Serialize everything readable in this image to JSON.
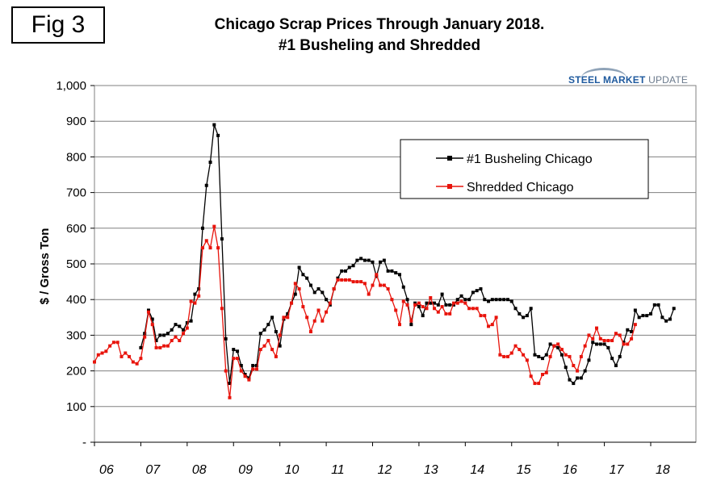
{
  "figure_label": "Fig 3",
  "title_line1": "Chicago Scrap Prices Through January 2018.",
  "title_line2": "#1 Busheling and Shredded",
  "logo": {
    "part1": "STEEL MARKET",
    "part2": "UPDATE",
    "arc_color": "#8fa3b8"
  },
  "chart_data": {
    "type": "line",
    "title": "Chicago Scrap Prices Through January 2018. #1 Busheling and Shredded",
    "xlabel": "",
    "ylabel": "$ / Gross Ton",
    "ylim": [
      0,
      1000
    ],
    "y_ticks": [
      0,
      100,
      200,
      300,
      400,
      500,
      600,
      700,
      800,
      900,
      1000
    ],
    "y_tick_labels": [
      "-",
      "100",
      "200",
      "300",
      "400",
      "500",
      "600",
      "700",
      "800",
      "900",
      "1,000"
    ],
    "x_tick_labels": [
      "06",
      "07",
      "08",
      "09",
      "10",
      "11",
      "12",
      "13",
      "14",
      "15",
      "16",
      "17",
      "18"
    ],
    "x_start": "Jan 2006",
    "x_end": "Jan 2018",
    "grid": true,
    "legend_position": "top-right",
    "series": [
      {
        "name": "#1 Busheling Chicago",
        "color": "#000000",
        "start_month_index": 12,
        "values": [
          265,
          305,
          370,
          345,
          285,
          300,
          300,
          305,
          315,
          330,
          325,
          315,
          335,
          340,
          415,
          430,
          600,
          720,
          785,
          890,
          860,
          570,
          290,
          165,
          260,
          255,
          215,
          190,
          180,
          215,
          215,
          305,
          315,
          330,
          350,
          310,
          270,
          345,
          360,
          390,
          415,
          490,
          470,
          460,
          440,
          420,
          430,
          420,
          400,
          385,
          430,
          460,
          480,
          480,
          490,
          495,
          510,
          515,
          510,
          510,
          505,
          465,
          505,
          510,
          480,
          480,
          475,
          470,
          435,
          400,
          330,
          390,
          380,
          355,
          390,
          390,
          390,
          385,
          415,
          385,
          385,
          385,
          400,
          410,
          400,
          400,
          420,
          425,
          430,
          400,
          395,
          400,
          400,
          400,
          400,
          400,
          395,
          375,
          360,
          350,
          355,
          375,
          245,
          240,
          235,
          245,
          275,
          270,
          265,
          245,
          210,
          175,
          165,
          180,
          180,
          200,
          230,
          280,
          275,
          275,
          275,
          265,
          235,
          215,
          240,
          280,
          315,
          310,
          370,
          350,
          355,
          355,
          360,
          385,
          385,
          350,
          340,
          345,
          375
        ]
      },
      {
        "name": "Shredded Chicago",
        "color": "#e8140c",
        "start_month_index": 0,
        "values": [
          225,
          245,
          250,
          255,
          270,
          280,
          280,
          240,
          250,
          240,
          225,
          220,
          235,
          295,
          365,
          330,
          265,
          265,
          270,
          270,
          285,
          295,
          285,
          305,
          320,
          395,
          390,
          410,
          545,
          565,
          545,
          605,
          545,
          375,
          200,
          125,
          235,
          235,
          200,
          185,
          175,
          205,
          205,
          260,
          270,
          285,
          260,
          240,
          300,
          350,
          350,
          390,
          445,
          430,
          380,
          350,
          310,
          340,
          370,
          340,
          365,
          390,
          430,
          455,
          455,
          455,
          455,
          450,
          450,
          450,
          445,
          415,
          440,
          470,
          440,
          440,
          430,
          400,
          370,
          330,
          395,
          385,
          340,
          385,
          390,
          380,
          375,
          405,
          375,
          365,
          380,
          360,
          360,
          390,
          390,
          395,
          390,
          375,
          375,
          375,
          355,
          355,
          325,
          330,
          350,
          245,
          240,
          240,
          250,
          270,
          260,
          245,
          230,
          185,
          165,
          165,
          190,
          195,
          240,
          270,
          275,
          260,
          245,
          240,
          215,
          200,
          240,
          270,
          300,
          290,
          320,
          290,
          285,
          285,
          285,
          305,
          300,
          275,
          275,
          290,
          330
        ]
      }
    ]
  }
}
